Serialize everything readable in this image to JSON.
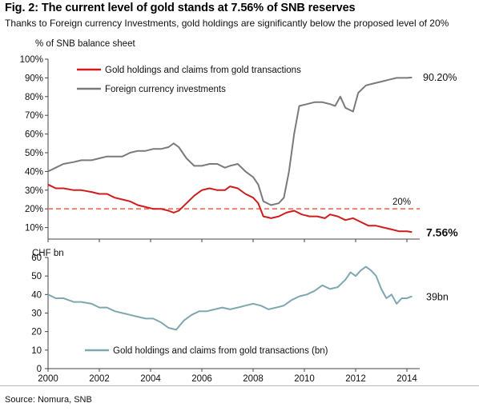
{
  "title": "Fig. 2: The current level of gold stands at 7.56% of SNB reserves",
  "subtitle": "Thanks to Foreign currency Investments, gold holdings are significantly below the proposed level of 20%",
  "source": "Source: Nomura, SNB",
  "colors": {
    "gold_line": "#d01c1c",
    "forex_line": "#7a7a7a",
    "gold_bn_line": "#7fa7b0",
    "threshold": "#e87a6a",
    "axis": "#444444"
  },
  "chart_data": [
    {
      "type": "line",
      "ylabel": "% of SNB balance sheet",
      "ylim": [
        0,
        100
      ],
      "yticks": [
        "10%",
        "20%",
        "30%",
        "40%",
        "50%",
        "60%",
        "70%",
        "80%",
        "90%",
        "100%"
      ],
      "ytick_values": [
        10,
        20,
        30,
        40,
        50,
        60,
        70,
        80,
        90,
        100
      ],
      "xlim": [
        2000,
        2014.5
      ],
      "reference_line": {
        "value": 20,
        "label": "20%"
      },
      "end_labels": {
        "gold": "7.56%",
        "forex": "90.20%"
      },
      "legend_placement": "top-left",
      "series": [
        {
          "name": "Gold holdings and claims from gold transactions",
          "key": "gold",
          "x": [
            2000,
            2000.3,
            2000.6,
            2001,
            2001.3,
            2001.7,
            2002,
            2002.3,
            2002.6,
            2002.9,
            2003.2,
            2003.5,
            2003.8,
            2004.1,
            2004.4,
            2004.7,
            2004.9,
            2005.1,
            2005.4,
            2005.7,
            2006,
            2006.3,
            2006.6,
            2006.9,
            2007.1,
            2007.4,
            2007.7,
            2008,
            2008.2,
            2008.4,
            2008.7,
            2009,
            2009.3,
            2009.6,
            2009.9,
            2010.2,
            2010.5,
            2010.8,
            2011,
            2011.3,
            2011.6,
            2011.9,
            2012.2,
            2012.5,
            2012.8,
            2013.1,
            2013.4,
            2013.7,
            2014,
            2014.2
          ],
          "y": [
            33,
            31,
            31,
            30,
            30,
            29,
            28,
            28,
            26,
            25,
            24,
            22,
            21,
            20,
            20,
            19,
            18,
            19,
            23,
            27,
            30,
            31,
            30,
            30,
            32,
            31,
            28,
            26,
            23,
            16,
            15,
            16,
            18,
            19,
            17,
            16,
            16,
            15,
            17,
            16,
            14,
            15,
            13,
            11,
            11,
            10,
            9,
            8,
            8,
            7.56
          ]
        },
        {
          "name": "Foreign currency investments",
          "key": "forex",
          "x": [
            2000,
            2000.3,
            2000.6,
            2001,
            2001.3,
            2001.7,
            2002,
            2002.3,
            2002.6,
            2002.9,
            2003.2,
            2003.5,
            2003.8,
            2004.1,
            2004.4,
            2004.7,
            2004.9,
            2005.1,
            2005.4,
            2005.7,
            2006,
            2006.3,
            2006.6,
            2006.9,
            2007.1,
            2007.4,
            2007.7,
            2008,
            2008.2,
            2008.4,
            2008.7,
            2009,
            2009.2,
            2009.4,
            2009.6,
            2009.8,
            2010.1,
            2010.4,
            2010.7,
            2011,
            2011.2,
            2011.4,
            2011.6,
            2011.9,
            2012.1,
            2012.4,
            2012.7,
            2013,
            2013.3,
            2013.6,
            2014,
            2014.2
          ],
          "y": [
            40,
            42,
            44,
            45,
            46,
            46,
            47,
            48,
            48,
            48,
            50,
            51,
            51,
            52,
            52,
            53,
            55,
            53,
            47,
            43,
            43,
            44,
            44,
            42,
            43,
            44,
            40,
            37,
            33,
            24,
            22,
            23,
            26,
            40,
            60,
            75,
            76,
            77,
            77,
            76,
            75,
            80,
            74,
            72,
            82,
            86,
            87,
            88,
            89,
            90,
            90,
            90.2
          ]
        }
      ]
    },
    {
      "type": "line",
      "ylabel": "CHF bn",
      "ylim": [
        0,
        60
      ],
      "yticks": [
        "0",
        "10",
        "20",
        "30",
        "40",
        "50",
        "60"
      ],
      "ytick_values": [
        0,
        10,
        20,
        30,
        40,
        50,
        60
      ],
      "xlim": [
        2000,
        2014.5
      ],
      "xticks": [
        "2000",
        "2002",
        "2004",
        "2006",
        "2008",
        "2010",
        "2012",
        "2014"
      ],
      "xtick_values": [
        2000,
        2002,
        2004,
        2006,
        2008,
        2010,
        2012,
        2014
      ],
      "end_label": "39bn",
      "legend_placement": "bottom-left",
      "series": [
        {
          "name": "Gold holdings and claims from gold transactions (bn)",
          "key": "gold_bn",
          "x": [
            2000,
            2000.3,
            2000.6,
            2001,
            2001.3,
            2001.7,
            2002,
            2002.3,
            2002.6,
            2002.9,
            2003.2,
            2003.5,
            2003.8,
            2004.1,
            2004.4,
            2004.7,
            2005,
            2005.3,
            2005.6,
            2005.9,
            2006.2,
            2006.5,
            2006.8,
            2007.1,
            2007.4,
            2007.7,
            2008,
            2008.3,
            2008.6,
            2008.9,
            2009.2,
            2009.5,
            2009.8,
            2010.1,
            2010.4,
            2010.7,
            2011,
            2011.3,
            2011.6,
            2011.8,
            2012,
            2012.2,
            2012.4,
            2012.6,
            2012.8,
            2013,
            2013.2,
            2013.4,
            2013.6,
            2013.8,
            2014,
            2014.2
          ],
          "y": [
            40,
            38,
            38,
            36,
            36,
            35,
            33,
            33,
            31,
            30,
            29,
            28,
            27,
            27,
            25,
            22,
            21,
            26,
            29,
            31,
            31,
            32,
            33,
            32,
            33,
            34,
            35,
            34,
            32,
            33,
            34,
            37,
            39,
            40,
            42,
            45,
            43,
            44,
            48,
            52,
            50,
            53,
            55,
            53,
            50,
            43,
            38,
            40,
            35,
            38,
            38,
            39
          ]
        }
      ]
    }
  ]
}
